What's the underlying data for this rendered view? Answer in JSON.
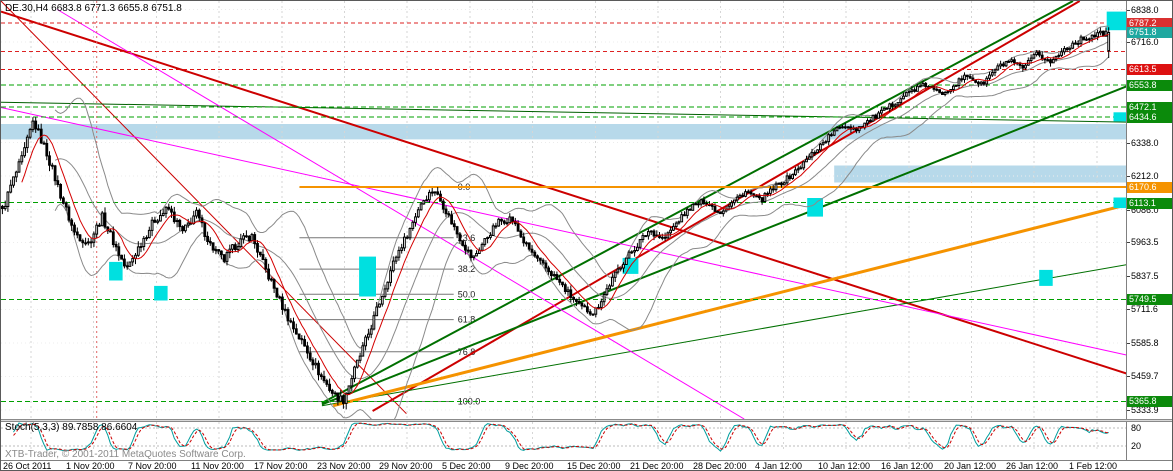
{
  "window": {
    "symbol_info": "DE.30,H4  6683.8 6771.3 6655.8 6751.8",
    "watermark": "XTB-Trader, © 2001-2011 MetaQuotes Software Corp."
  },
  "colors": {
    "background": "#FFFFFF",
    "grid": "#D6D6D6",
    "candle_up": "#FFFFFF",
    "candle_down": "#000000",
    "candle_border": "#000000",
    "bollinger": "#8A8A8A",
    "ma": "#D40000",
    "stoch_k": "#009E9E",
    "stoch_d": "#CC0000",
    "cyan_box": "#00E0E0",
    "pale_band": "#B7D9EA"
  },
  "chart_data": {
    "type": "candlestick",
    "symbol": "DE.30",
    "timeframe": "H4",
    "title": "DE.30,H4  6683.8 6771.3 6655.8 6751.8",
    "ohlc_display": {
      "open": 6683.8,
      "high": 6771.3,
      "low": 6655.8,
      "close": 6751.8
    },
    "bars": 400,
    "y_axis": {
      "min": 5300,
      "max": 6870,
      "plain_ticks": [
        6838.0,
        6716.0,
        6338.0,
        6212.0,
        6086.0,
        5963.5,
        5837.5,
        5711.6,
        5585.8,
        5459.7,
        5333.9
      ],
      "flags": [
        {
          "price": 6787.2,
          "label": "6787.2",
          "bg": "#D93030"
        },
        {
          "price": 6751.8,
          "label": "6751.8",
          "bg": "#1FA8A0"
        },
        {
          "price": 6613.5,
          "label": "6613.5",
          "bg": "#DD1111"
        },
        {
          "price": 6553.8,
          "label": "6553.8",
          "bg": "#0B8A0B"
        },
        {
          "price": 6472.1,
          "label": "6472.1",
          "bg": "#0B8A0B"
        },
        {
          "price": 6434.6,
          "label": "6434.6",
          "bg": "#0B8A0B"
        },
        {
          "price": 6170.6,
          "label": "6170.6",
          "bg": "#F59300"
        },
        {
          "price": 6113.1,
          "label": "6113.1",
          "bg": "#0B8A0B"
        },
        {
          "price": 5749.5,
          "label": "5749.5",
          "bg": "#0B8A0B"
        },
        {
          "price": 5365.8,
          "label": "5365.8",
          "bg": "#0B8A0B"
        }
      ]
    },
    "x_axis": {
      "labels": [
        "26 Oct 2011",
        "1 Nov 20:00",
        "7 Nov 20:00",
        "11 Nov 20:00",
        "17 Nov 20:00",
        "23 Nov 20:00",
        "29 Nov 20:00",
        "5 Dec 20:00",
        "9 Dec 20:00",
        "15 Dec 20:00",
        "21 Dec 20:00",
        "28 Dec 20:00",
        "4 Jan 12:00",
        "10 Jan 12:00",
        "16 Jan 12:00",
        "20 Jan 12:00",
        "26 Jan 12:00",
        "1 Feb 12:00"
      ]
    },
    "price_path": [
      [
        0,
        6080
      ],
      [
        0.008,
        6180
      ],
      [
        0.018,
        6280
      ],
      [
        0.028,
        6420
      ],
      [
        0.04,
        6300
      ],
      [
        0.052,
        6150
      ],
      [
        0.065,
        6000
      ],
      [
        0.078,
        5960
      ],
      [
        0.09,
        6060
      ],
      [
        0.1,
        5970
      ],
      [
        0.112,
        5860
      ],
      [
        0.125,
        5960
      ],
      [
        0.138,
        6050
      ],
      [
        0.15,
        6090
      ],
      [
        0.163,
        6000
      ],
      [
        0.175,
        6075
      ],
      [
        0.188,
        5955
      ],
      [
        0.2,
        5895
      ],
      [
        0.212,
        5960
      ],
      [
        0.225,
        5990
      ],
      [
        0.238,
        5860
      ],
      [
        0.25,
        5750
      ],
      [
        0.262,
        5650
      ],
      [
        0.275,
        5560
      ],
      [
        0.288,
        5460
      ],
      [
        0.3,
        5390
      ],
      [
        0.308,
        5370
      ],
      [
        0.318,
        5480
      ],
      [
        0.33,
        5610
      ],
      [
        0.342,
        5750
      ],
      [
        0.355,
        5905
      ],
      [
        0.368,
        6010
      ],
      [
        0.378,
        6110
      ],
      [
        0.39,
        6165
      ],
      [
        0.4,
        6090
      ],
      [
        0.412,
        5990
      ],
      [
        0.425,
        5900
      ],
      [
        0.435,
        5965
      ],
      [
        0.448,
        6040
      ],
      [
        0.46,
        6055
      ],
      [
        0.472,
        5960
      ],
      [
        0.485,
        5890
      ],
      [
        0.498,
        5840
      ],
      [
        0.51,
        5780
      ],
      [
        0.522,
        5720
      ],
      [
        0.535,
        5700
      ],
      [
        0.548,
        5800
      ],
      [
        0.56,
        5885
      ],
      [
        0.572,
        5945
      ],
      [
        0.585,
        6010
      ],
      [
        0.598,
        5975
      ],
      [
        0.61,
        6040
      ],
      [
        0.622,
        6095
      ],
      [
        0.635,
        6120
      ],
      [
        0.648,
        6075
      ],
      [
        0.66,
        6115
      ],
      [
        0.672,
        6155
      ],
      [
        0.685,
        6120
      ],
      [
        0.698,
        6170
      ],
      [
        0.71,
        6205
      ],
      [
        0.722,
        6250
      ],
      [
        0.735,
        6310
      ],
      [
        0.748,
        6365
      ],
      [
        0.76,
        6405
      ],
      [
        0.772,
        6390
      ],
      [
        0.785,
        6425
      ],
      [
        0.798,
        6460
      ],
      [
        0.81,
        6500
      ],
      [
        0.822,
        6535
      ],
      [
        0.835,
        6555
      ],
      [
        0.848,
        6520
      ],
      [
        0.86,
        6555
      ],
      [
        0.872,
        6590
      ],
      [
        0.885,
        6555
      ],
      [
        0.898,
        6615
      ],
      [
        0.91,
        6645
      ],
      [
        0.922,
        6615
      ],
      [
        0.935,
        6670
      ],
      [
        0.948,
        6640
      ],
      [
        0.96,
        6690
      ],
      [
        0.972,
        6720
      ],
      [
        0.985,
        6740
      ],
      [
        1,
        6752
      ]
    ],
    "trend_lines": [
      {
        "x1": 0.0,
        "p1": 6830,
        "x2": 1.0,
        "p2": 5470,
        "color": "#CC0000",
        "w": 2
      },
      {
        "x1": 0.0,
        "p1": 6870,
        "x2": 0.36,
        "p2": 5320,
        "color": "#CC0000",
        "w": 1
      },
      {
        "x1": 0.33,
        "p1": 5330,
        "x2": 0.958,
        "p2": 6870,
        "color": "#CC0000",
        "w": 2
      },
      {
        "x1": 0.285,
        "p1": 5360,
        "x2": 0.952,
        "p2": 6870,
        "color": "#007000",
        "w": 2
      },
      {
        "x1": 0.285,
        "p1": 5355,
        "x2": 1.0,
        "p2": 6550,
        "color": "#007000",
        "w": 2
      },
      {
        "x1": 0.285,
        "p1": 5350,
        "x2": 1.0,
        "p2": 5880,
        "color": "#007000",
        "w": 1
      },
      {
        "x1": 0.0,
        "p1": 6490,
        "x2": 1.0,
        "p2": 6415,
        "color": "#006000",
        "w": 1
      },
      {
        "x1": 0.05,
        "p1": 6838,
        "x2": 0.66,
        "p2": 5300,
        "color": "#FF00FF",
        "w": 1
      },
      {
        "x1": 0.0,
        "p1": 6470,
        "x2": 1.0,
        "p2": 5540,
        "color": "#FF00FF",
        "w": 1
      },
      {
        "x1": 0.295,
        "p1": 5350,
        "x2": 1.0,
        "p2": 6105,
        "color": "#F59300",
        "w": 3
      },
      {
        "x1": 0.085,
        "p1": 6870,
        "x2": 0.085,
        "p2": 5300,
        "color": "#E06666",
        "w": 1,
        "dash": "2,3"
      }
    ],
    "h_lines": [
      {
        "price": 6787.2,
        "color": "#DD2222",
        "dash": "4,3",
        "w": 1
      },
      {
        "price": 6680.0,
        "color": "#DD2222",
        "dash": "4,3",
        "w": 1
      },
      {
        "price": 6613.5,
        "color": "#DD1111",
        "dash": "4,3",
        "w": 1
      },
      {
        "price": 6553.8,
        "color": "#00A000",
        "dash": "5,3",
        "w": 1
      },
      {
        "price": 6472.1,
        "color": "#00A000",
        "dash": "5,3",
        "w": 1
      },
      {
        "price": 6434.6,
        "color": "#00A000",
        "dash": "5,3",
        "w": 1
      },
      {
        "price": 6170.6,
        "color": "#F59300",
        "w": 2,
        "x1": 0.265
      },
      {
        "price": 6113.1,
        "color": "#00A000",
        "dash": "5,3",
        "w": 1
      },
      {
        "price": 5749.5,
        "color": "#00A000",
        "dash": "5,3",
        "w": 1
      },
      {
        "price": 5365.8,
        "color": "#00A000",
        "dash": "5,3",
        "w": 1
      }
    ],
    "rects": [
      [
        0.096,
        0.108,
        5820,
        5890
      ],
      [
        0.136,
        0.148,
        5745,
        5800
      ],
      [
        0.318,
        0.333,
        5760,
        5910
      ],
      [
        0.552,
        0.566,
        5845,
        5905
      ],
      [
        0.716,
        0.73,
        6060,
        6130
      ],
      [
        0.922,
        0.934,
        5800,
        5860
      ],
      [
        0.982,
        1.0,
        6760,
        6830
      ],
      [
        0.988,
        1.0,
        6418,
        6452
      ],
      [
        0.988,
        1.0,
        6092,
        6132
      ]
    ],
    "bands": [
      [
        0.0,
        1.0,
        6350,
        6408
      ],
      [
        0.74,
        1.0,
        6188,
        6252
      ]
    ],
    "fibonacci": {
      "x1": 0.265,
      "x2": 0.402,
      "levels": [
        {
          "pct": "0.0",
          "price": 6170.6
        },
        {
          "pct": "23.6",
          "price": 5980.7
        },
        {
          "pct": "38.2",
          "price": 5863.2
        },
        {
          "pct": "50.0",
          "price": 5768.2
        },
        {
          "pct": "61.8",
          "price": 5673.3
        },
        {
          "pct": "76.8",
          "price": 5552.5
        },
        {
          "pct": "100.0",
          "price": 5365.8
        }
      ]
    },
    "stoch": {
      "label": "Stoch(5,3,3) 89.7858 86.6604",
      "k_period": 5,
      "d_period": 3,
      "slowing": 3,
      "values": [
        89.7858,
        86.6604
      ],
      "levels": [
        80,
        20
      ]
    }
  }
}
